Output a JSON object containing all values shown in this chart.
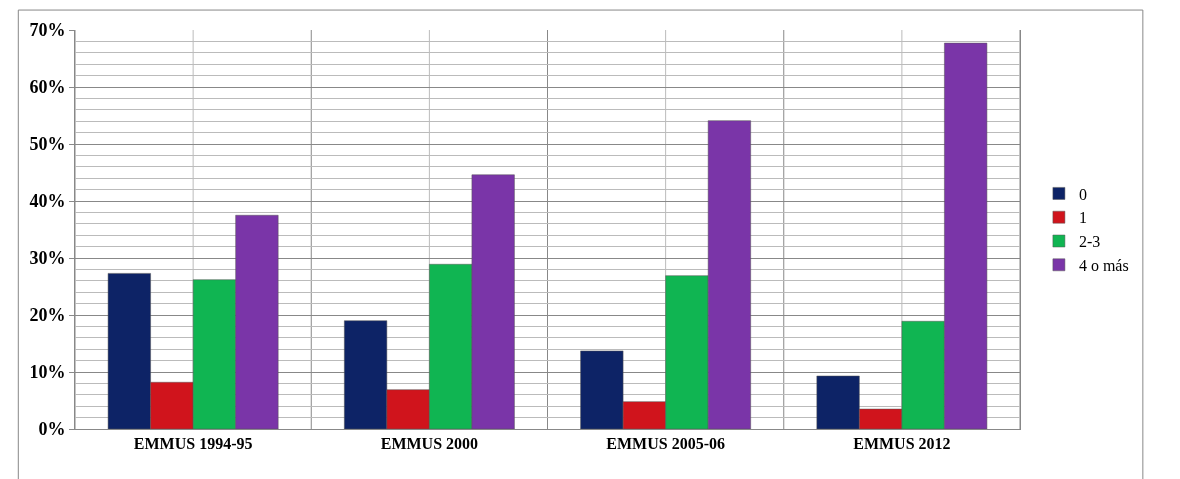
{
  "chart_data": {
    "type": "bar",
    "categories": [
      "EMMUS 1994-95",
      "EMMUS 2000",
      "EMMUS 2005-06",
      "EMMUS 2012"
    ],
    "series": [
      {
        "name": "0",
        "color": "#0d2366",
        "values": [
          27.3,
          19.0,
          13.7,
          9.3
        ]
      },
      {
        "name": "1",
        "color": "#d0141c",
        "values": [
          8.2,
          6.9,
          4.8,
          3.5
        ]
      },
      {
        "name": "2-3",
        "color": "#10b552",
        "values": [
          26.2,
          28.9,
          26.9,
          18.9
        ]
      },
      {
        "name": "4 o más",
        "color": "#7a35a8",
        "values": [
          37.5,
          44.6,
          54.1,
          67.7
        ]
      }
    ],
    "ylim": [
      0,
      70
    ],
    "yticks": [
      {
        "value": 0,
        "label": "0%"
      },
      {
        "value": 10,
        "label": "10%"
      },
      {
        "value": 20,
        "label": "20%"
      },
      {
        "value": 30,
        "label": "30%"
      },
      {
        "value": 40,
        "label": "40%"
      },
      {
        "value": 50,
        "label": "50%"
      },
      {
        "value": 60,
        "label": "60%"
      },
      {
        "value": 70,
        "label": "70%"
      }
    ],
    "grid": true,
    "legend": "right"
  }
}
